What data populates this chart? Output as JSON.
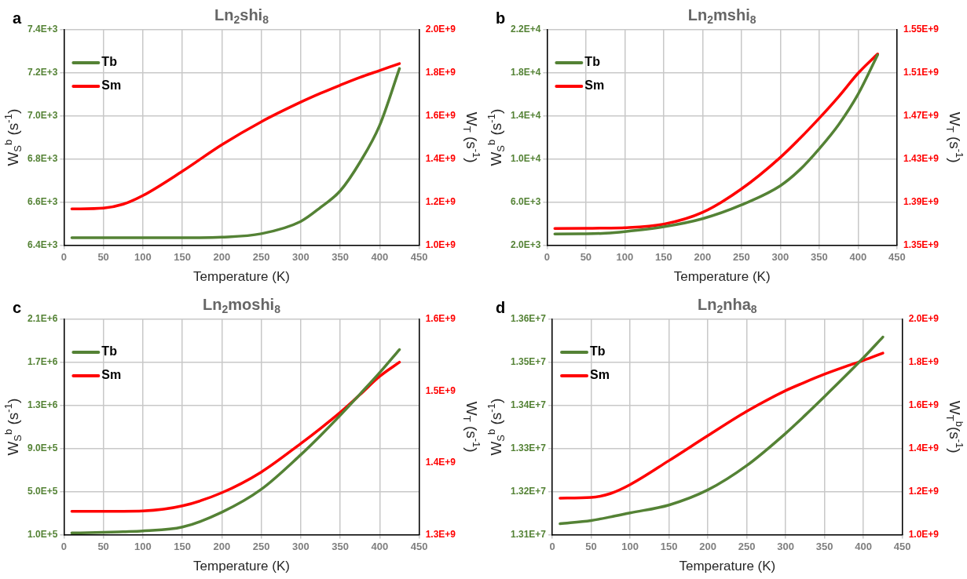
{
  "chart_data": [
    {
      "type": "line",
      "title": "Ln$_{2}$shi$_{8}$",
      "annotations": [
        "a"
      ],
      "xlabel": "Temperature (K)",
      "ylabel": "W$_{S}$$^{b}$ (s$^{-1}$)",
      "y2label": "W$_{T}$ (s$^{-1}$)",
      "grid": true,
      "legend": "top left",
      "xlim": [
        0,
        450
      ],
      "xticks": [
        0,
        50,
        100,
        150,
        200,
        250,
        300,
        350,
        400,
        450
      ],
      "ylim": [
        6400,
        7400
      ],
      "yticks": [
        {
          "value": 6400,
          "label": "6.4E+3"
        },
        {
          "value": 6600,
          "label": "6.6E+3"
        },
        {
          "value": 6800,
          "label": "6.8E+3"
        },
        {
          "value": 7000,
          "label": "7.0E+3"
        },
        {
          "value": 7200,
          "label": "7.2E+3"
        },
        {
          "value": 7400,
          "label": "7.4E+3"
        }
      ],
      "y2lim": [
        1000000000,
        2000000000
      ],
      "y2ticks": [
        {
          "value": 1000000000,
          "label": "1.0E+9"
        },
        {
          "value": 1200000000,
          "label": "1.2E+9"
        },
        {
          "value": 1400000000,
          "label": "1.4E+9"
        },
        {
          "value": 1600000000,
          "label": "1.6E+9"
        },
        {
          "value": 1800000000,
          "label": "1.8E+9"
        },
        {
          "value": 2000000000,
          "label": "2.0E+9"
        }
      ],
      "x": [
        10,
        50,
        75,
        100,
        150,
        200,
        250,
        300,
        325,
        350,
        375,
        400,
        425
      ],
      "series": [
        {
          "name": "Tb",
          "color": "#548235",
          "values": [
            6434,
            6434,
            6434,
            6434,
            6434,
            6437,
            6453,
            6510,
            6575,
            6652,
            6785,
            6957,
            7220
          ]
        },
        {
          "name": "Sm",
          "color": "#ff0000",
          "axis": "y2",
          "values": [
            1168000000,
            1172000000,
            1190000000,
            1230000000,
            1343000000,
            1466000000,
            1573000000,
            1664000000,
            1705000000,
            1743000000,
            1779000000,
            1811000000,
            1843000000
          ]
        }
      ]
    },
    {
      "type": "line",
      "title": "Ln$_{2}$mshi$_{8}$",
      "annotations": [
        "b"
      ],
      "xlabel": "Temperature (K)",
      "ylabel": "W$_{S}$$^{b}$ (s$^{-1}$)",
      "y2label": "W$_{T}$ (s$^{-1}$)",
      "grid": true,
      "legend": "top left",
      "xlim": [
        0,
        450
      ],
      "xticks": [
        0,
        50,
        100,
        150,
        200,
        250,
        300,
        350,
        400,
        450
      ],
      "ylim": [
        2000,
        22000
      ],
      "yticks": [
        {
          "value": 2000,
          "label": "2.0E+3"
        },
        {
          "value": 6000,
          "label": "6.0E+3"
        },
        {
          "value": 10000,
          "label": "1.0E+4"
        },
        {
          "value": 14000,
          "label": "1.4E+4"
        },
        {
          "value": 18000,
          "label": "1.8E+4"
        },
        {
          "value": 22000,
          "label": "2.2E+4"
        }
      ],
      "y2lim": [
        1350000000,
        1550000000
      ],
      "y2ticks": [
        {
          "value": 1350000000,
          "label": "1.35E+9"
        },
        {
          "value": 1390000000,
          "label": "1.39E+9"
        },
        {
          "value": 1430000000,
          "label": "1.43E+9"
        },
        {
          "value": 1470000000,
          "label": "1.47E+9"
        },
        {
          "value": 1510000000,
          "label": "1.51E+9"
        },
        {
          "value": 1550000000,
          "label": "1.55E+9"
        }
      ],
      "x": [
        10,
        50,
        75,
        100,
        150,
        200,
        250,
        300,
        325,
        350,
        375,
        400,
        425
      ],
      "series": [
        {
          "name": "Tb",
          "color": "#548235",
          "values": [
            3040,
            3050,
            3100,
            3250,
            3700,
            4450,
            5730,
            7520,
            9000,
            10950,
            13200,
            16030,
            19670
          ]
        },
        {
          "name": "Sm",
          "color": "#ff0000",
          "axis": "y2",
          "values": [
            1365500000,
            1365600000,
            1365800000,
            1366100000,
            1369400000,
            1380400000,
            1402200000,
            1431500000,
            1449000000,
            1467900000,
            1488000000,
            1509700000,
            1527600000
          ]
        }
      ]
    },
    {
      "type": "line",
      "title": "Ln$_{2}$moshi$_{8}$",
      "annotations": [
        "c"
      ],
      "xlabel": "Temperature (K)",
      "ylabel": "W$_{S}$$^{b}$ (s$^{-1}$)",
      "y2label": "W$_{T}$ (s$^{-1}$)",
      "grid": true,
      "legend": "top left",
      "xlim": [
        0,
        450
      ],
      "xticks": [
        0,
        50,
        100,
        150,
        200,
        250,
        300,
        350,
        400,
        450
      ],
      "ylim": [
        100000,
        2100000
      ],
      "yticks": [
        {
          "value": 100000,
          "label": "1.0E+5"
        },
        {
          "value": 500000,
          "label": "5.0E+5"
        },
        {
          "value": 900000,
          "label": "9.0E+5"
        },
        {
          "value": 1300000,
          "label": "1.3E+6"
        },
        {
          "value": 1700000,
          "label": "1.7E+6"
        },
        {
          "value": 2100000,
          "label": "2.1E+6"
        }
      ],
      "y2lim": [
        1300000000,
        1600000000
      ],
      "y2ticks": [
        {
          "value": 1300000000,
          "label": "1.3E+9"
        },
        {
          "value": 1400000000,
          "label": "1.4E+9"
        },
        {
          "value": 1500000000,
          "label": "1.5E+9"
        },
        {
          "value": 1600000000,
          "label": "1.6E+9"
        }
      ],
      "x": [
        10,
        50,
        75,
        100,
        150,
        200,
        250,
        300,
        325,
        350,
        375,
        400,
        425
      ],
      "series": [
        {
          "name": "Tb",
          "color": "#548235",
          "values": [
            115000,
            121000,
            127000,
            134000,
            170000,
            308000,
            521000,
            842000,
            1020000,
            1208000,
            1405000,
            1605000,
            1819000
          ]
        },
        {
          "name": "Sm",
          "color": "#ff0000",
          "axis": "y2",
          "values": [
            1332400000,
            1332500000,
            1332500000,
            1332900000,
            1340000000,
            1358400000,
            1387200000,
            1426900000,
            1448000000,
            1470300000,
            1495000000,
            1520500000,
            1540200000
          ]
        }
      ]
    },
    {
      "type": "line",
      "title": "Ln$_{2}$nha$_{8}$",
      "annotations": [
        "d"
      ],
      "xlabel": "Temperature (K)",
      "ylabel": "W$_{S}$$^{b}$ (s$^{-1}$)",
      "y2label": "W$_{T}$$^{b}$(s$^{-1}$)",
      "grid": true,
      "legend": "top left",
      "xlim": [
        0,
        450
      ],
      "xticks": [
        0,
        50,
        100,
        150,
        200,
        250,
        300,
        350,
        400,
        450
      ],
      "ylim": [
        13100000,
        13600000
      ],
      "yticks": [
        {
          "value": 13100000,
          "label": "1.31E+7"
        },
        {
          "value": 13200000,
          "label": "1.32E+7"
        },
        {
          "value": 13300000,
          "label": "1.33E+7"
        },
        {
          "value": 13400000,
          "label": "1.34E+7"
        },
        {
          "value": 13500000,
          "label": "1.35E+7"
        },
        {
          "value": 13600000,
          "label": "1.36E+7"
        }
      ],
      "y2lim": [
        1000000000,
        2000000000
      ],
      "y2ticks": [
        {
          "value": 1000000000,
          "label": "1.0E+9"
        },
        {
          "value": 1200000000,
          "label": "1.2E+9"
        },
        {
          "value": 1400000000,
          "label": "1.4E+9"
        },
        {
          "value": 1600000000,
          "label": "1.6E+9"
        },
        {
          "value": 1800000000,
          "label": "1.8E+9"
        },
        {
          "value": 2000000000,
          "label": "2.0E+9"
        }
      ],
      "x": [
        10,
        50,
        75,
        100,
        150,
        200,
        250,
        300,
        325,
        350,
        375,
        400,
        425
      ],
      "series": [
        {
          "name": "Tb",
          "color": "#548235",
          "values": [
            13125200,
            13132800,
            13141000,
            13150400,
            13168700,
            13203800,
            13260300,
            13335100,
            13377000,
            13420600,
            13465000,
            13510700,
            13558800
          ]
        },
        {
          "name": "Sm",
          "color": "#ff0000",
          "axis": "y2",
          "values": [
            1169500000,
            1172500000,
            1191000000,
            1232000000,
            1343500000,
            1459500000,
            1572500000,
            1668700000,
            1708000000,
            1745000000,
            1778000000,
            1809000000,
            1843000000
          ]
        }
      ]
    }
  ]
}
